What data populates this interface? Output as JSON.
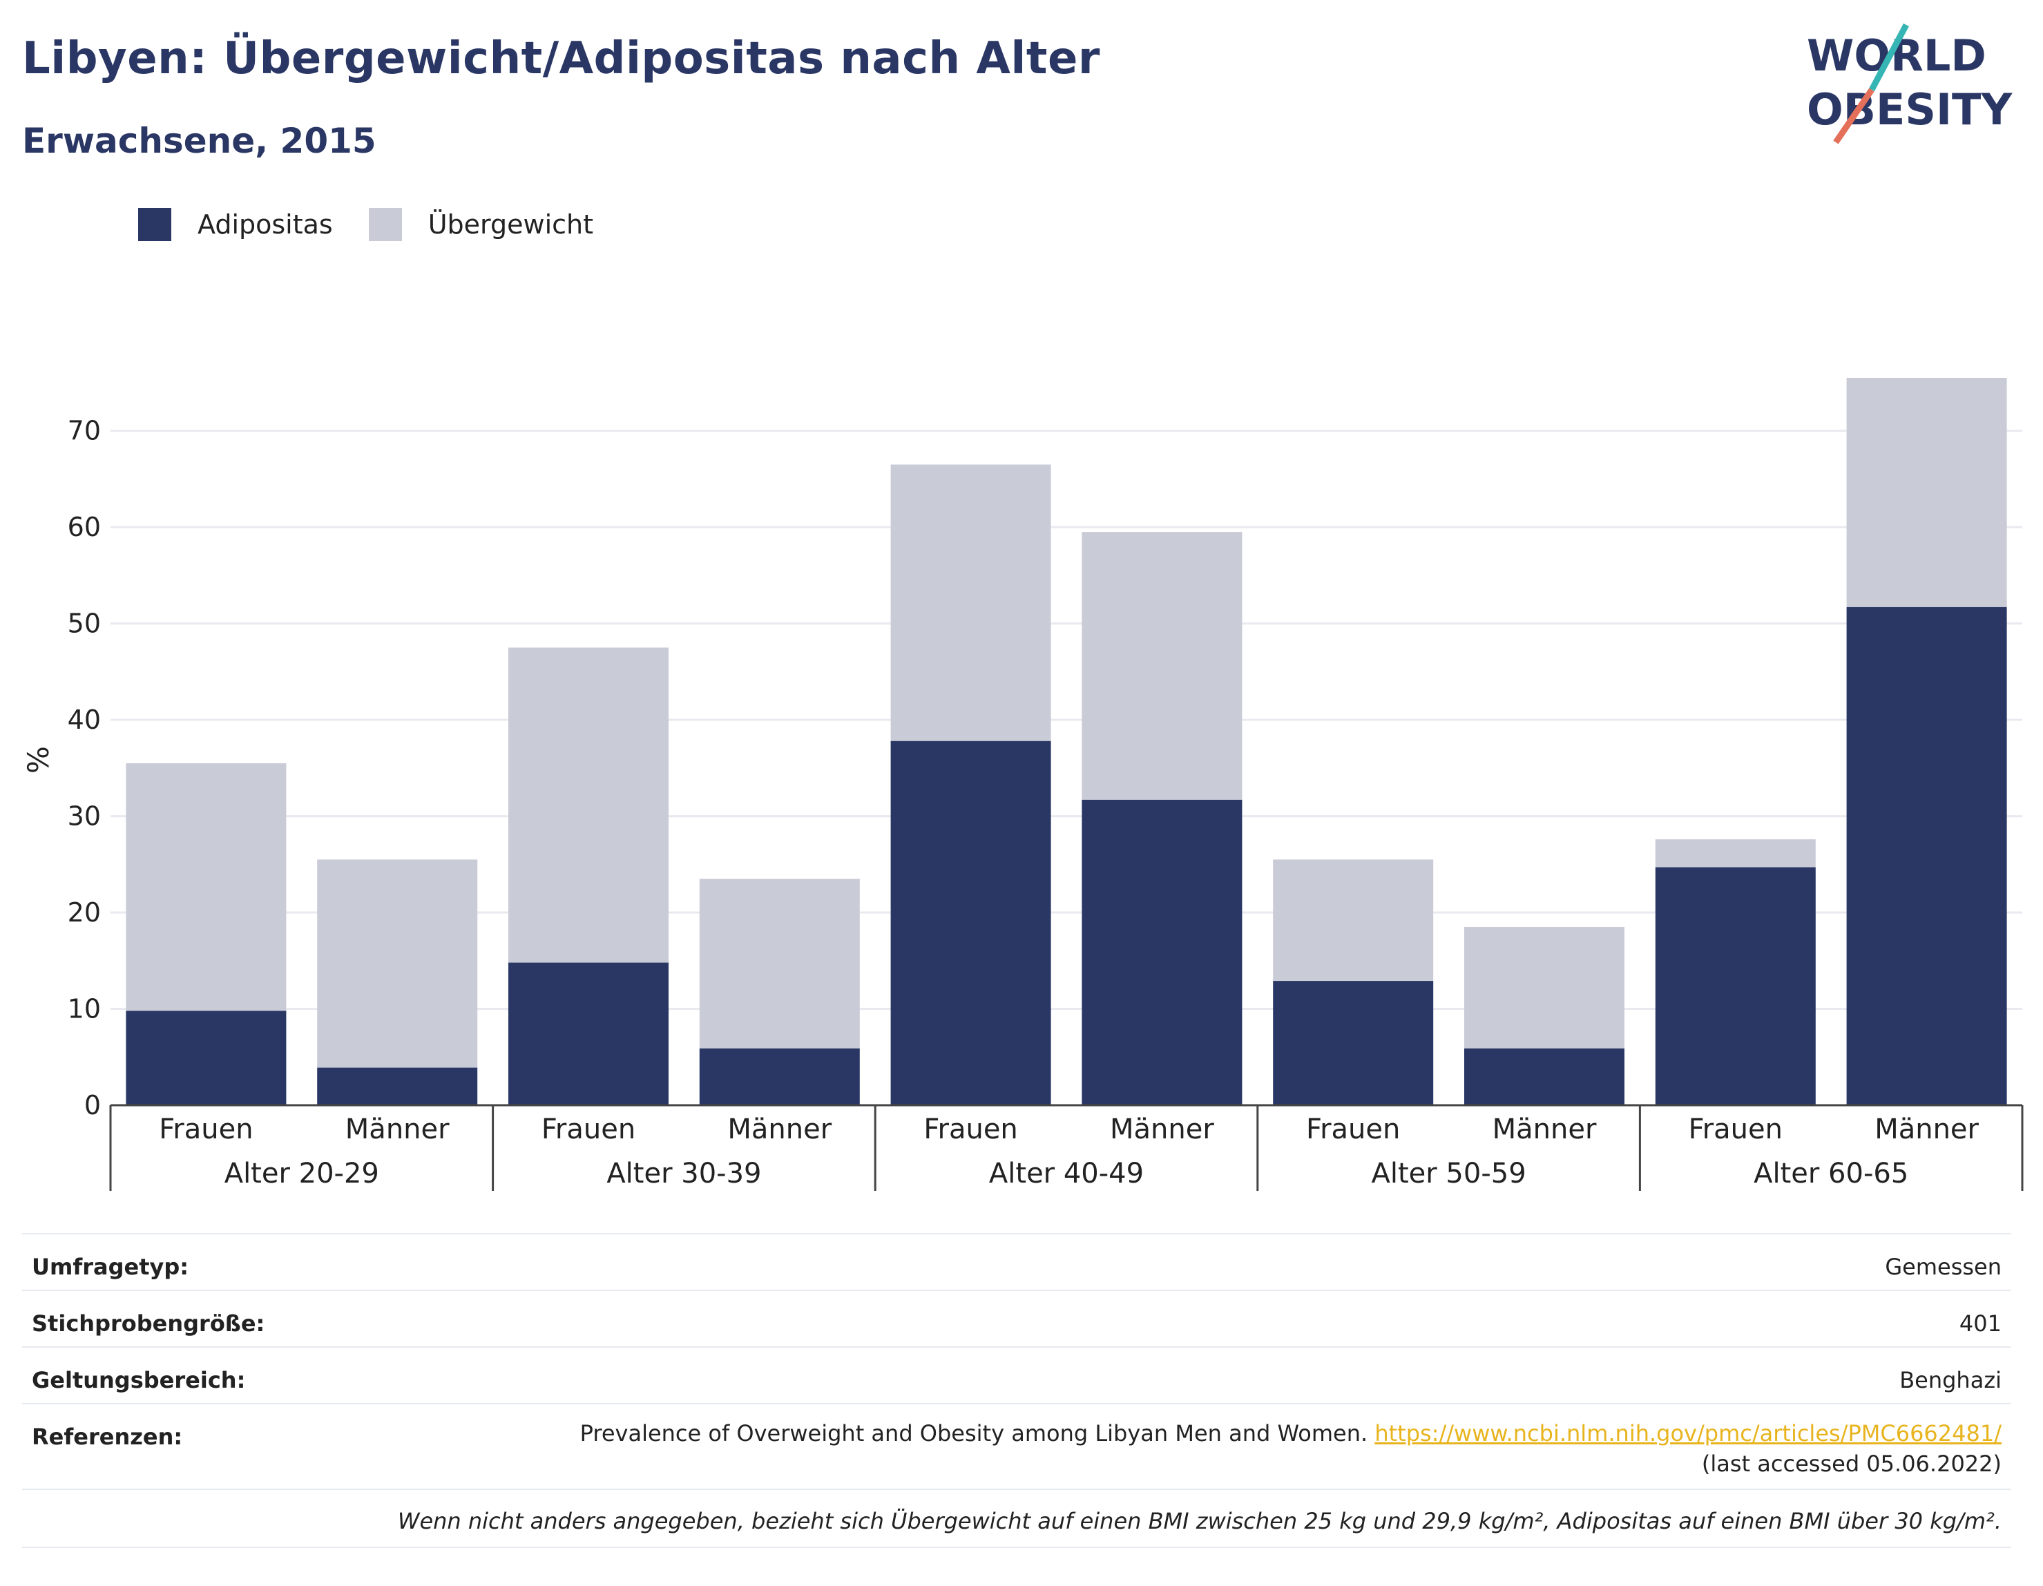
{
  "header": {
    "title": "Libyen: Übergewicht/Adipositas nach Alter",
    "subtitle": "Erwachsene, 2015"
  },
  "logo": {
    "line1": "WORLD",
    "line2": "OBESITY",
    "accent_teal": "#35b6b4",
    "accent_coral": "#e5705a"
  },
  "colors": {
    "adipositas": "#2a3765",
    "uebergewicht": "#c9cbd7",
    "grid": "#e9eaf0",
    "axis": "#444444"
  },
  "legend": [
    {
      "label": "Adipositas",
      "color": "#2a3765"
    },
    {
      "label": "Übergewicht",
      "color": "#c9cbd7"
    }
  ],
  "chart_data": {
    "type": "bar",
    "stacked": true,
    "ylabel": "%",
    "ylim": [
      0,
      76
    ],
    "yticks": [
      0,
      10,
      20,
      30,
      40,
      50,
      60,
      70
    ],
    "grid": true,
    "legend_position": "top-left",
    "groups": [
      "Alter 20-29",
      "Alter 30-39",
      "Alter 40-49",
      "Alter 50-59",
      "Alter 60-65"
    ],
    "categories": [
      "Frauen",
      "Männer",
      "Frauen",
      "Männer",
      "Frauen",
      "Männer",
      "Frauen",
      "Männer",
      "Frauen",
      "Männer"
    ],
    "series": [
      {
        "name": "Adipositas",
        "values": [
          9.8,
          3.9,
          14.8,
          5.9,
          37.8,
          31.7,
          12.9,
          5.9,
          24.7,
          51.7
        ]
      },
      {
        "name": "Übergewicht",
        "values": [
          25.7,
          21.6,
          32.7,
          17.6,
          28.7,
          27.8,
          12.6,
          12.6,
          2.9,
          23.8
        ]
      }
    ]
  },
  "info": {
    "survey_type_label": "Umfragetyp:",
    "survey_type_value": "Gemessen",
    "sample_label": "Stichprobengröße:",
    "sample_value": "401",
    "scope_label": "Geltungsbereich:",
    "scope_value": "Benghazi",
    "ref_label": "Referenzen:",
    "ref_text": "Prevalence of Overweight and Obesity among Libyan Men and Women.",
    "ref_link": "https://www.ncbi.nlm.nih.gov/pmc/articles/PMC6662481/",
    "ref_suffix": "(last accessed 05.06.2022)",
    "note": "Wenn nicht anders angegeben, bezieht sich Übergewicht auf einen BMI zwischen 25 kg und 29,9 kg/m², Adipositas auf einen BMI über 30 kg/m²."
  }
}
